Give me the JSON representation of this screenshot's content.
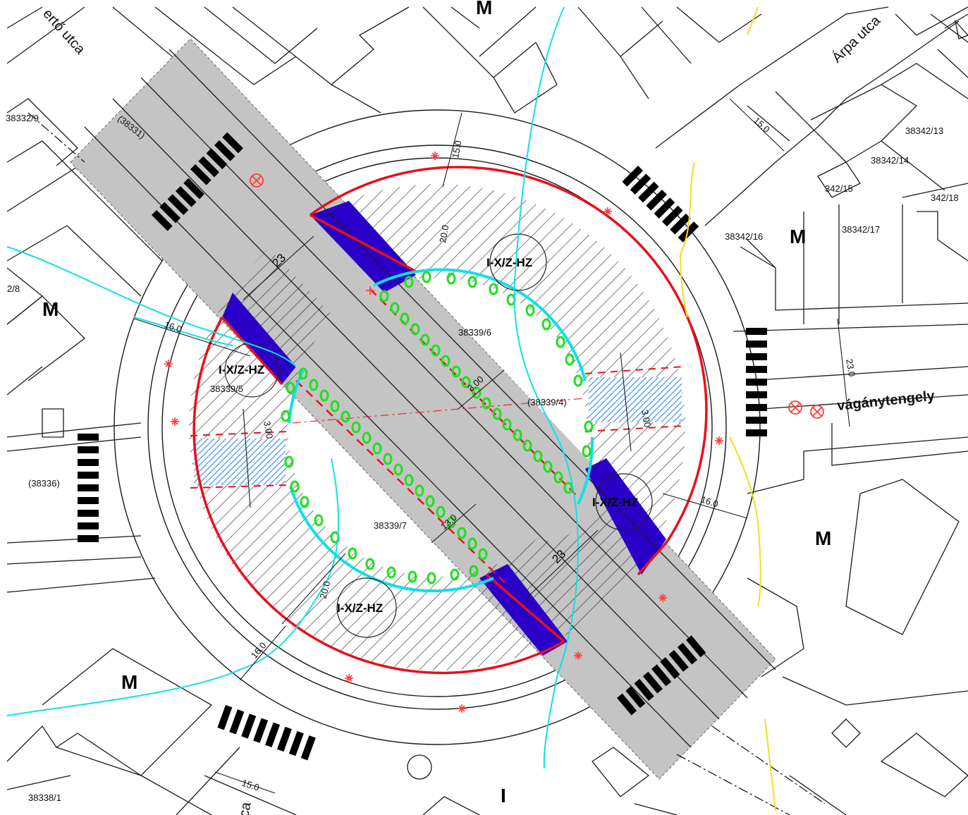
{
  "map": {
    "colors": {
      "background": "#ffffff",
      "track_band": "#c4c4c4",
      "platform": "#2a00c8",
      "boundary": "#e8101a",
      "crosswalk": "#3b8ff0",
      "water_line": "#10e0e8",
      "green_marks": "#20e020",
      "yellow_line": "#f0e020",
      "star_markers": "#ff3b3b"
    },
    "streets": [
      {
        "id": "erto",
        "text": "ertő utca"
      },
      {
        "id": "arpa",
        "text": "Árpa utca"
      },
      {
        "id": "bottom",
        "text": "ca"
      }
    ],
    "zone_letters": [
      {
        "id": "m1",
        "text": "M"
      },
      {
        "id": "m2",
        "text": "M"
      },
      {
        "id": "m3",
        "text": "M"
      },
      {
        "id": "m4",
        "text": "M"
      },
      {
        "id": "m_top",
        "text": "M"
      },
      {
        "id": "i1",
        "text": "I"
      }
    ],
    "zone_codes": [
      {
        "id": "z_top",
        "text": "I-X/Z-HZ"
      },
      {
        "id": "z_left",
        "text": "I-X/Z-HZ"
      },
      {
        "id": "z_right",
        "text": "I-X/Z-HZ"
      },
      {
        "id": "z_bottom",
        "text": "I-X/Z-HZ"
      }
    ],
    "track_label": "vágánytengely",
    "parcels": [
      {
        "id": "p1",
        "text": "38332/9"
      },
      {
        "id": "p2",
        "text": "(38331)"
      },
      {
        "id": "p3",
        "text": "2/8"
      },
      {
        "id": "p4",
        "text": "38339/6"
      },
      {
        "id": "p5",
        "text": "38339/5"
      },
      {
        "id": "p6",
        "text": "(38339/4)"
      },
      {
        "id": "p7",
        "text": "38339/7"
      },
      {
        "id": "p8",
        "text": "(38336)"
      },
      {
        "id": "p9",
        "text": "38342/13"
      },
      {
        "id": "p10",
        "text": "38342/14"
      },
      {
        "id": "p11",
        "text": "342/15"
      },
      {
        "id": "p12",
        "text": "342/18"
      },
      {
        "id": "p13",
        "text": "38342/16"
      },
      {
        "id": "p14",
        "text": "38342/17"
      },
      {
        "id": "p15",
        "text": "38338/1"
      }
    ],
    "dimensions": [
      {
        "id": "d1",
        "text": "23"
      },
      {
        "id": "d2",
        "text": "23"
      },
      {
        "id": "d3",
        "text": "16.0"
      },
      {
        "id": "d4",
        "text": "16.0"
      },
      {
        "id": "d5",
        "text": "16.0"
      },
      {
        "id": "d6",
        "text": "15.0"
      },
      {
        "id": "d7",
        "text": "15.0"
      },
      {
        "id": "d8",
        "text": "15.0"
      },
      {
        "id": "d9",
        "text": "23.0"
      },
      {
        "id": "d10",
        "text": "20.0"
      },
      {
        "id": "d11",
        "text": "20.0"
      },
      {
        "id": "d12",
        "text": "3.00"
      },
      {
        "id": "d13",
        "text": "13.0"
      },
      {
        "id": "d14",
        "text": "3.00"
      },
      {
        "id": "d15",
        "text": "3.00"
      }
    ]
  }
}
